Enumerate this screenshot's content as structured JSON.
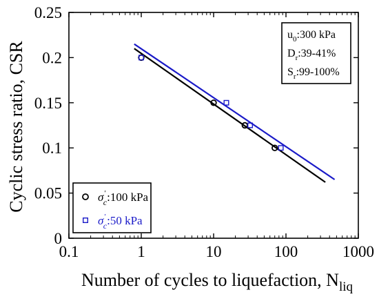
{
  "chart_data": {
    "type": "scatter",
    "xlabel": "Number of cycles to liquefaction, N",
    "xlabel_sub": "liq",
    "ylabel": "Cyclic stress ratio, CSR",
    "x_scale": "log",
    "xlim": [
      0.1,
      1000
    ],
    "ylim": [
      0,
      0.25
    ],
    "x_ticks": [
      "0.1",
      "1",
      "10",
      "100",
      "1000"
    ],
    "y_ticks": [
      "0",
      "0.05",
      "0.1",
      "0.15",
      "0.2",
      "0.25"
    ],
    "grid": false,
    "legend_placement": "bottom-left",
    "series": [
      {
        "name": "σ′c:100 kPa",
        "name_symbol": "σ",
        "name_sub": "c",
        "name_text": ":100 kPa",
        "color": "#000000",
        "marker": "circle",
        "points": [
          [
            1,
            0.2
          ],
          [
            10,
            0.15
          ],
          [
            27,
            0.125
          ],
          [
            70,
            0.1
          ]
        ],
        "fit_line": [
          [
            0.8,
            0.21
          ],
          [
            350,
            0.062
          ]
        ]
      },
      {
        "name": "σ′c:50 kPa",
        "name_symbol": "σ",
        "name_sub": "c",
        "name_text": ":50 kPa",
        "color": "#1a1ac8",
        "marker": "square",
        "points": [
          [
            1,
            0.2
          ],
          [
            15,
            0.15
          ],
          [
            32,
            0.125
          ],
          [
            85,
            0.1
          ]
        ],
        "fit_line": [
          [
            0.8,
            0.215
          ],
          [
            470,
            0.065
          ]
        ]
      }
    ],
    "annotation": [
      {
        "main": "u",
        "sub": "0",
        "rest": ":300 kPa"
      },
      {
        "main": "D",
        "sub": "r",
        "rest": ":39-41%"
      },
      {
        "main": "S",
        "sub": "r",
        "rest": ":99-100%"
      }
    ]
  }
}
